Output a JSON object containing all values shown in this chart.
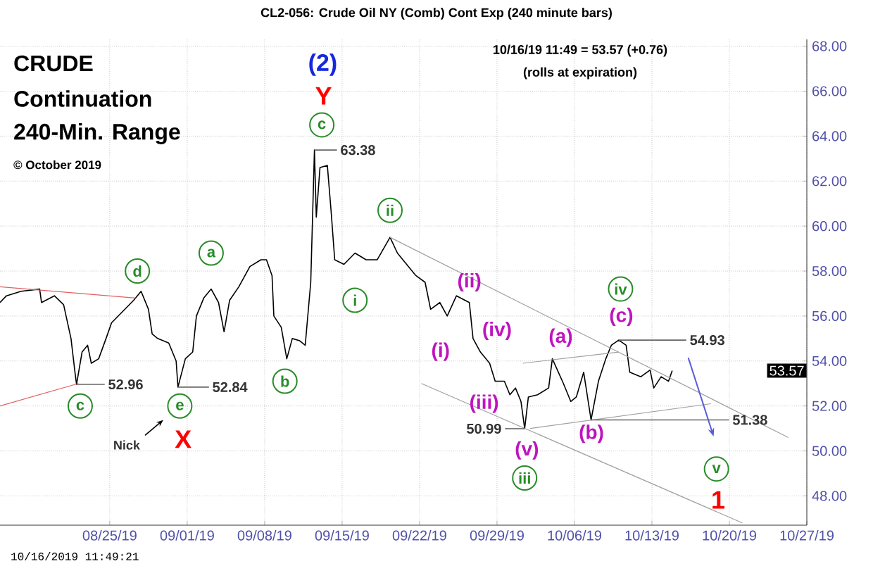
{
  "chart_data": {
    "type": "line",
    "title": "CL2-056:  Crude Oil NY (Comb) Cont Exp  (240 minute bars)",
    "subtitle": "CRUDE",
    "xlim": [
      "2019-08-15T02:00",
      "2019-10-27T00:00"
    ],
    "ylim": [
      46.7,
      68.3
    ],
    "xticks": [
      {
        "value": "2019-08-25",
        "label": "08/25/19"
      },
      {
        "value": "2019-09-01",
        "label": "09/01/19"
      },
      {
        "value": "2019-09-08",
        "label": "09/08/19"
      },
      {
        "value": "2019-09-15",
        "label": "09/15/19"
      },
      {
        "value": "2019-09-22",
        "label": "09/22/19"
      },
      {
        "value": "2019-09-29",
        "label": "09/29/19"
      },
      {
        "value": "2019-10-06",
        "label": "10/06/19"
      },
      {
        "value": "2019-10-13",
        "label": "10/13/19"
      },
      {
        "value": "2019-10-20",
        "label": "10/20/19"
      },
      {
        "value": "2019-10-27",
        "label": "10/27/19"
      }
    ],
    "yticks": [
      {
        "value": 48,
        "label": "48.00"
      },
      {
        "value": 50,
        "label": "50.00"
      },
      {
        "value": 52,
        "label": "52.00"
      },
      {
        "value": 54,
        "label": "54.00"
      },
      {
        "value": 56,
        "label": "56.00"
      },
      {
        "value": 58,
        "label": "58.00"
      },
      {
        "value": 60,
        "label": "60.00"
      },
      {
        "value": 62,
        "label": "62.00"
      },
      {
        "value": 64,
        "label": "64.00"
      },
      {
        "value": 66,
        "label": "66.00"
      },
      {
        "value": 68,
        "label": "68.00"
      }
    ],
    "grid": true,
    "series": [
      {
        "color": "#000000",
        "x": [
          "2019-08-15T02:00",
          "2019-08-15T16:00",
          "2019-08-17T00:00",
          "2019-08-18T16:00",
          "2019-08-18T20:00",
          "2019-08-20T00:00",
          "2019-08-20T20:00",
          "2019-08-21T12:00",
          "2019-08-21T20:00",
          "2019-08-22T00:00",
          "2019-08-22T12:00",
          "2019-08-23T00:00",
          "2019-08-23T08:00",
          "2019-08-24T00:00",
          "2019-08-24T16:00",
          "2019-08-25T04:00",
          "2019-08-26T04:00",
          "2019-08-27T04:00",
          "2019-08-27T20:00",
          "2019-08-28T12:00",
          "2019-08-28T20:00",
          "2019-08-29T08:00",
          "2019-08-30T08:00",
          "2019-08-31T00:00",
          "2019-08-31T04:00",
          "2019-08-31T20:00",
          "2019-09-01T12:00",
          "2019-09-01T20:00",
          "2019-09-02T12:00",
          "2019-09-03T04:00",
          "2019-09-03T20:00",
          "2019-09-04T08:00",
          "2019-09-04T20:00",
          "2019-09-05T16:00",
          "2019-09-06T16:00",
          "2019-09-07T16:00",
          "2019-09-08T04:00",
          "2019-09-08T16:00",
          "2019-09-08T20:00",
          "2019-09-09T12:00",
          "2019-09-10T00:00",
          "2019-09-10T12:00",
          "2019-09-11T04:00",
          "2019-09-11T16:00",
          "2019-09-12T04:00",
          "2019-09-12T12:00",
          "2019-09-12T16:00",
          "2019-09-13T00:00",
          "2019-09-13T16:00",
          "2019-09-14T00:00",
          "2019-09-14T08:00",
          "2019-09-15T04:00",
          "2019-09-16T04:00",
          "2019-09-17T04:00",
          "2019-09-18T04:00",
          "2019-09-19T08:00",
          "2019-09-20T00:00",
          "2019-09-21T00:00",
          "2019-09-21T16:00",
          "2019-09-22T12:00",
          "2019-09-23T00:00",
          "2019-09-23T20:00",
          "2019-09-24T12:00",
          "2019-09-25T08:00",
          "2019-09-26T12:00",
          "2019-09-26T20:00",
          "2019-09-27T12:00",
          "2019-09-28T08:00",
          "2019-09-28T20:00",
          "2019-09-29T16:00",
          "2019-09-30T04:00",
          "2019-09-30T16:00",
          "2019-10-01T04:00",
          "2019-10-01T12:00",
          "2019-10-01T20:00",
          "2019-10-02T16:00",
          "2019-10-03T16:00",
          "2019-10-04T00:00",
          "2019-10-05T00:00",
          "2019-10-05T16:00",
          "2019-10-06T04:00",
          "2019-10-06T20:00",
          "2019-10-07T12:00",
          "2019-10-08T04:00",
          "2019-10-08T20:00",
          "2019-10-09T08:00",
          "2019-10-10T00:00",
          "2019-10-10T16:00",
          "2019-10-11T00:00",
          "2019-10-12T00:00",
          "2019-10-12T20:00",
          "2019-10-13T04:00",
          "2019-10-13T20:00",
          "2019-10-14T12:00",
          "2019-10-14T20:00"
        ],
        "values": [
          56.6,
          56.9,
          57.1,
          57.2,
          56.6,
          56.9,
          56.5,
          55.0,
          53.6,
          52.96,
          54.4,
          54.7,
          53.9,
          54.1,
          55.0,
          55.7,
          56.2,
          56.7,
          57.1,
          56.3,
          55.2,
          55.0,
          54.8,
          54.0,
          52.84,
          54.1,
          54.4,
          56.0,
          56.8,
          57.2,
          56.6,
          55.3,
          56.7,
          57.3,
          58.2,
          58.5,
          58.5,
          57.8,
          56.0,
          55.5,
          54.1,
          55.0,
          54.9,
          54.7,
          57.5,
          63.38,
          60.4,
          62.6,
          62.7,
          60.7,
          58.5,
          58.3,
          58.8,
          58.5,
          58.5,
          59.5,
          58.8,
          58.2,
          57.8,
          57.5,
          56.3,
          56.6,
          56.0,
          56.9,
          56.6,
          55.0,
          54.4,
          53.9,
          53.1,
          53.1,
          52.5,
          52.8,
          52.2,
          50.99,
          52.4,
          52.5,
          52.8,
          54.1,
          53.0,
          52.2,
          52.4,
          53.5,
          51.38,
          53.1,
          54.1,
          54.7,
          54.93,
          54.7,
          53.5,
          53.3,
          53.6,
          52.8,
          53.3,
          53.1,
          53.57
        ]
      },
      {
        "color": "#e06060",
        "x": [
          "2019-08-15T02:00",
          "2019-08-27T08:00"
        ],
        "values": [
          57.3,
          56.8
        ]
      },
      {
        "color": "#e06060",
        "x": [
          "2019-08-15T02:00",
          "2019-08-22T04:00"
        ],
        "values": [
          52.0,
          53.0
        ]
      },
      {
        "color": "#a0a0a0",
        "x": [
          "2019-09-19T08:00",
          "2019-10-25T08:00"
        ],
        "values": [
          59.5,
          50.6
        ]
      },
      {
        "color": "#a0a0a0",
        "x": [
          "2019-09-22T04:00",
          "2019-10-21T04:00"
        ],
        "values": [
          53.0,
          46.8
        ]
      },
      {
        "color": "#a0a0a0",
        "x": [
          "2019-10-01T08:00",
          "2019-10-10T00:00"
        ],
        "values": [
          53.9,
          54.4
        ]
      },
      {
        "color": "#a0a0a0",
        "x": [
          "2019-10-02T00:00",
          "2019-10-18T08:00"
        ],
        "values": [
          51.0,
          52.1
        ]
      }
    ],
    "annotations": [
      "Continuation",
      "240-Min. Range",
      "© October 2019",
      "10/16/19 11:49 = 53.57 (+0.76)",
      "(rolls at expiration)",
      "10/16/2019 11:49:21",
      "(2)",
      "Y",
      "X",
      "1",
      {
        "text": "c",
        "x": "2019-09-13T04:00",
        "y": 64.5
      },
      {
        "text": "ii",
        "x": "2019-09-19T08:00",
        "y": 60.7
      },
      {
        "text": "i",
        "x": "2019-09-16T04:00",
        "y": 56.7
      },
      {
        "text": "a",
        "x": "2019-09-03T04:00",
        "y": 58.8
      },
      {
        "text": "d",
        "x": "2019-08-27T12:00",
        "y": 58.0
      },
      {
        "text": "c",
        "x": "2019-08-22T08:00",
        "y": 52.0
      },
      {
        "text": "e",
        "x": "2019-08-31T08:00",
        "y": 52.0
      },
      {
        "text": "b",
        "x": "2019-09-09T20:00",
        "y": 53.1
      },
      {
        "text": "iii",
        "x": "2019-10-01T12:00",
        "y": 48.8
      },
      {
        "text": "iv",
        "x": "2019-10-10T04:00",
        "y": 57.2
      },
      {
        "text": "v",
        "x": "2019-10-18T20:00",
        "y": 49.2
      },
      {
        "text": "(ii)",
        "x": "2019-09-26T12:00",
        "y": 57.5
      },
      "(i)",
      "(iv)",
      {
        "text": "(iii)",
        "x": "2019-09-27T20:00",
        "y": 52.1
      },
      "(v)",
      "(a)",
      "(b)",
      "(c)",
      {
        "text": "63.38",
        "x": "2019-09-12T12:00",
        "y": 63.38
      },
      {
        "text": "52.96",
        "x": "2019-08-22T00:00",
        "y": 52.96
      },
      {
        "text": "52.84",
        "x": "2019-08-31T04:00",
        "y": 52.84
      },
      {
        "text": "50.99",
        "x": "2019-10-01T12:00",
        "y": 50.99
      },
      {
        "text": "54.93",
        "x": "2019-10-10T00:00",
        "y": 54.93
      },
      {
        "text": "51.38",
        "x": "2019-10-07T12:00",
        "y": 51.38
      },
      "Nick",
      {
        "text": "53.57",
        "y": 53.57
      }
    ]
  }
}
